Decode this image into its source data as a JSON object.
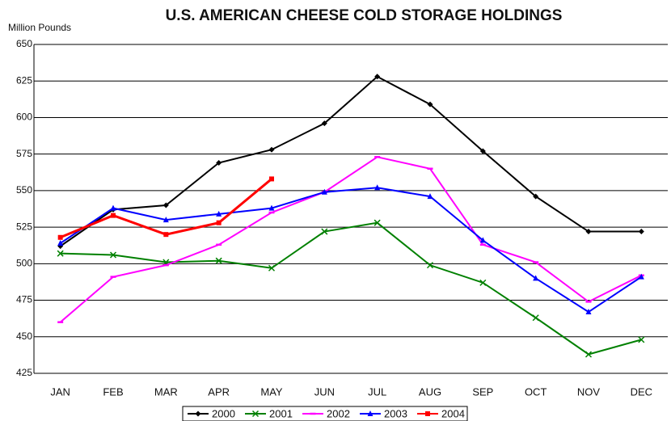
{
  "chart_data": {
    "type": "line",
    "title": "U.S. AMERICAN CHEESE COLD STORAGE HOLDINGS",
    "y_label": "Million Pounds",
    "categories": [
      "JAN",
      "FEB",
      "MAR",
      "APR",
      "MAY",
      "JUN",
      "JUL",
      "AUG",
      "SEP",
      "OCT",
      "NOV",
      "DEC"
    ],
    "series": [
      {
        "name": "2000",
        "color": "#000000",
        "marker": "diamond",
        "values": [
          512,
          537,
          540,
          569,
          578,
          596,
          628,
          609,
          577,
          546,
          522,
          522
        ]
      },
      {
        "name": "2001",
        "color": "#008000",
        "marker": "x",
        "values": [
          507,
          506,
          501,
          502,
          497,
          522,
          528,
          499,
          487,
          463,
          438,
          448
        ]
      },
      {
        "name": "2002",
        "color": "#ff00ff",
        "marker": "dash",
        "values": [
          460,
          491,
          499,
          513,
          535,
          549,
          573,
          565,
          513,
          501,
          474,
          492
        ]
      },
      {
        "name": "2003",
        "color": "#0000ff",
        "marker": "triangle",
        "values": [
          514,
          538,
          530,
          534,
          538,
          549,
          552,
          546,
          516,
          490,
          467,
          491
        ]
      },
      {
        "name": "2004",
        "color": "#ff0000",
        "marker": "square",
        "values": [
          518,
          533,
          520,
          528,
          558,
          null,
          null,
          null,
          null,
          null,
          null,
          null
        ]
      }
    ],
    "ylim": [
      425,
      650
    ],
    "yticks": [
      425,
      450,
      475,
      500,
      525,
      550,
      575,
      600,
      625,
      650
    ],
    "grid": true,
    "legend": "bottom"
  }
}
